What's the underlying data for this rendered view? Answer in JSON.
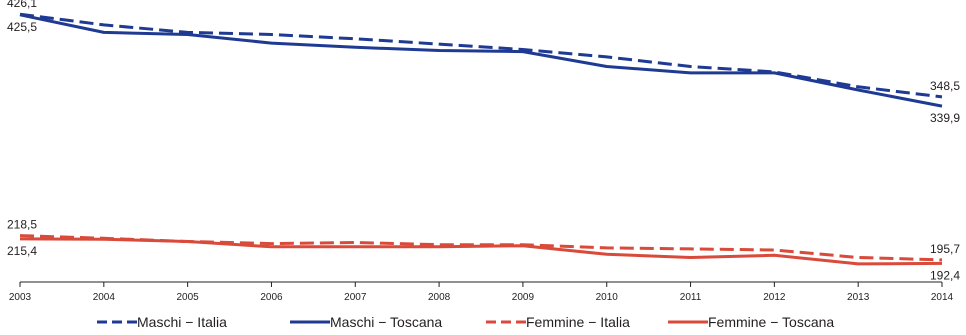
{
  "chart_data": {
    "type": "line",
    "x": [
      "2003",
      "2004",
      "2005",
      "2006",
      "2007",
      "2008",
      "2009",
      "2010",
      "2011",
      "2012",
      "2013",
      "2014"
    ],
    "ylim": [
      175,
      430
    ],
    "grid": false,
    "legend_position": "bottom",
    "series": [
      {
        "name": "Maschi − Italia",
        "color": "#1f3a93",
        "dash": true,
        "values": [
          426.1,
          416,
          409,
          407,
          403,
          398,
          393,
          386,
          377,
          372,
          358,
          348.5
        ]
      },
      {
        "name": "Maschi − Toscana",
        "color": "#1f3a93",
        "dash": false,
        "values": [
          425.5,
          409,
          407,
          399,
          395,
          392,
          391,
          377,
          371,
          371,
          355,
          339.9
        ]
      },
      {
        "name": "Femmine − Italia",
        "color": "#d94a3a",
        "dash": true,
        "values": [
          218.5,
          216,
          213,
          211,
          212,
          210,
          210,
          207,
          206,
          205,
          198,
          195.7
        ]
      },
      {
        "name": "Femmine − Toscana",
        "color": "#d94a3a",
        "dash": false,
        "values": [
          215.4,
          215,
          213,
          208,
          208,
          208,
          209,
          201,
          198,
          200,
          192,
          192.4
        ]
      }
    ],
    "data_labels": [
      {
        "text": "426,1",
        "x": "2003",
        "value": 426.1,
        "side": "left",
        "pos": "above"
      },
      {
        "text": "425,5",
        "x": "2003",
        "value": 425.5,
        "side": "left",
        "pos": "below"
      },
      {
        "text": "348,5",
        "x": "2014",
        "value": 348.5,
        "side": "right",
        "pos": "above"
      },
      {
        "text": "339,9",
        "x": "2014",
        "value": 339.9,
        "side": "right",
        "pos": "below"
      },
      {
        "text": "218,5",
        "x": "2003",
        "value": 218.5,
        "side": "left",
        "pos": "above"
      },
      {
        "text": "215,4",
        "x": "2003",
        "value": 215.4,
        "side": "left",
        "pos": "below"
      },
      {
        "text": "195,7",
        "x": "2014",
        "value": 195.7,
        "side": "right",
        "pos": "above"
      },
      {
        "text": "192,4",
        "x": "2014",
        "value": 192.4,
        "side": "right",
        "pos": "below"
      }
    ]
  }
}
